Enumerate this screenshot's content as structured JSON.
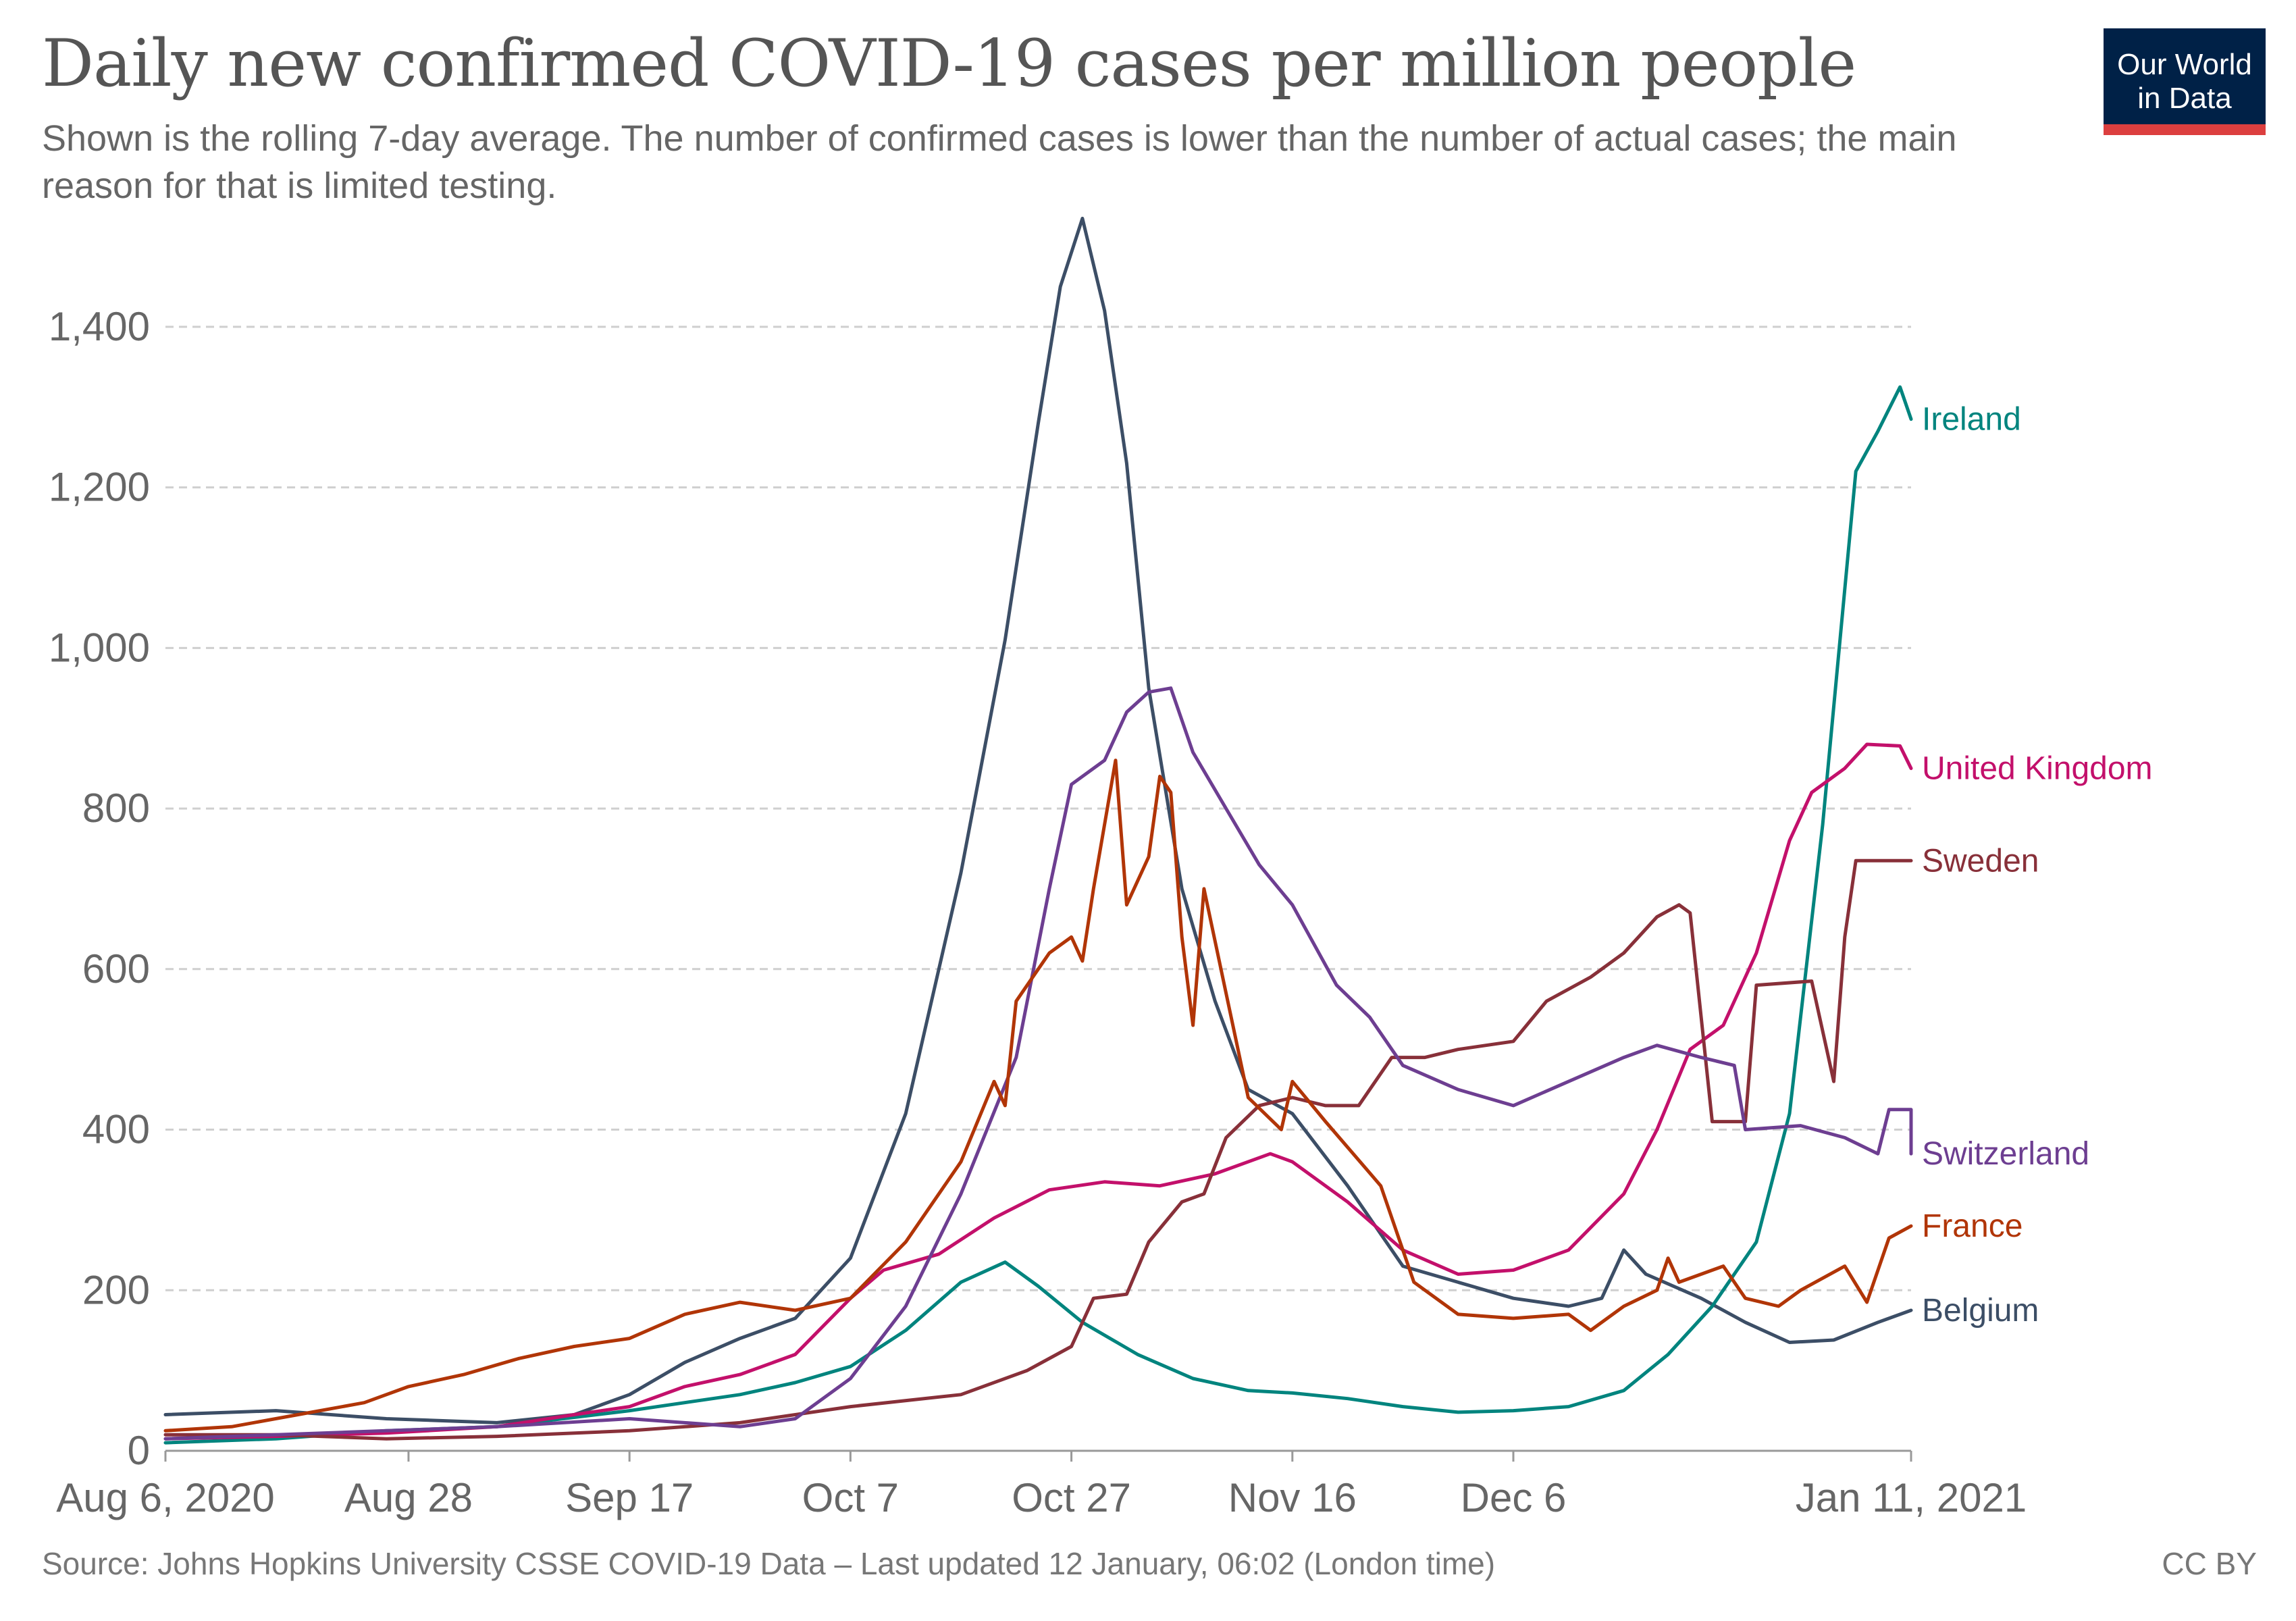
{
  "header": {
    "title": "Daily new confirmed COVID-19 cases per million people",
    "subtitle": "Shown is the rolling 7-day average. The number of confirmed cases is lower than the number of actual cases; the main reason for that is limited testing."
  },
  "logo": {
    "line1": "Our World",
    "line2": "in Data",
    "bg_color": "#002147",
    "bar_color": "#dc3f3f"
  },
  "footer": {
    "source": "Source: Johns Hopkins University CSSE COVID-19 Data – Last updated 12 January, 06:02 (London time)",
    "license": "CC BY"
  },
  "chart_data": {
    "type": "line",
    "title": "Daily new confirmed COVID-19 cases per million people",
    "xlabel": "",
    "ylabel": "",
    "x_range": [
      "2020-08-06",
      "2021-01-11"
    ],
    "ylim": [
      0,
      1500
    ],
    "y_ticks": [
      0,
      200,
      400,
      600,
      800,
      1000,
      1200,
      1400
    ],
    "y_tick_labels": [
      "0",
      "200",
      "400",
      "600",
      "800",
      "1,000",
      "1,200",
      "1,400"
    ],
    "x_ticks": [
      "2020-08-06",
      "2020-08-28",
      "2020-09-17",
      "2020-10-07",
      "2020-10-27",
      "2020-11-16",
      "2020-12-06",
      "2021-01-11"
    ],
    "x_tick_labels": [
      "Aug 6, 2020",
      "Aug 28",
      "Sep 17",
      "Oct 7",
      "Oct 27",
      "Nov 16",
      "Dec 6",
      "Jan 11, 2021"
    ],
    "grid": "horizontal dashed",
    "legend": "inline labels at line ends (right)",
    "series": [
      {
        "name": "Belgium",
        "color": "#3c4e66",
        "points": [
          [
            "2020-08-06",
            45
          ],
          [
            "2020-08-16",
            50
          ],
          [
            "2020-08-26",
            40
          ],
          [
            "2020-09-05",
            35
          ],
          [
            "2020-09-12",
            45
          ],
          [
            "2020-09-17",
            70
          ],
          [
            "2020-09-22",
            110
          ],
          [
            "2020-09-27",
            140
          ],
          [
            "2020-10-02",
            165
          ],
          [
            "2020-10-07",
            240
          ],
          [
            "2020-10-12",
            420
          ],
          [
            "2020-10-17",
            720
          ],
          [
            "2020-10-21",
            1010
          ],
          [
            "2020-10-24",
            1280
          ],
          [
            "2020-10-26",
            1450
          ],
          [
            "2020-10-28",
            1535
          ],
          [
            "2020-10-30",
            1420
          ],
          [
            "2020-11-01",
            1230
          ],
          [
            "2020-11-03",
            950
          ],
          [
            "2020-11-06",
            700
          ],
          [
            "2020-11-09",
            560
          ],
          [
            "2020-11-12",
            450
          ],
          [
            "2020-11-16",
            420
          ],
          [
            "2020-11-21",
            330
          ],
          [
            "2020-11-26",
            230
          ],
          [
            "2020-12-01",
            210
          ],
          [
            "2020-12-06",
            190
          ],
          [
            "2020-12-11",
            180
          ],
          [
            "2020-12-14",
            190
          ],
          [
            "2020-12-16",
            250
          ],
          [
            "2020-12-18",
            220
          ],
          [
            "2020-12-23",
            190
          ],
          [
            "2020-12-27",
            160
          ],
          [
            "2020-12-31",
            135
          ],
          [
            "2021-01-04",
            138
          ],
          [
            "2021-01-08",
            160
          ],
          [
            "2021-01-11",
            175
          ]
        ]
      },
      {
        "name": "Ireland",
        "color": "#00847e",
        "points": [
          [
            "2020-08-06",
            10
          ],
          [
            "2020-08-16",
            15
          ],
          [
            "2020-08-26",
            25
          ],
          [
            "2020-09-05",
            30
          ],
          [
            "2020-09-17",
            50
          ],
          [
            "2020-09-27",
            70
          ],
          [
            "2020-10-02",
            85
          ],
          [
            "2020-10-07",
            105
          ],
          [
            "2020-10-12",
            150
          ],
          [
            "2020-10-17",
            210
          ],
          [
            "2020-10-21",
            235
          ],
          [
            "2020-10-24",
            205
          ],
          [
            "2020-10-28",
            160
          ],
          [
            "2020-11-02",
            120
          ],
          [
            "2020-11-07",
            90
          ],
          [
            "2020-11-12",
            75
          ],
          [
            "2020-11-16",
            72
          ],
          [
            "2020-11-21",
            65
          ],
          [
            "2020-11-26",
            55
          ],
          [
            "2020-12-01",
            48
          ],
          [
            "2020-12-06",
            50
          ],
          [
            "2020-12-11",
            55
          ],
          [
            "2020-12-16",
            75
          ],
          [
            "2020-12-20",
            120
          ],
          [
            "2020-12-24",
            180
          ],
          [
            "2020-12-28",
            260
          ],
          [
            "2020-12-31",
            420
          ],
          [
            "2021-01-03",
            780
          ],
          [
            "2021-01-06",
            1220
          ],
          [
            "2021-01-08",
            1270
          ],
          [
            "2021-01-10",
            1325
          ],
          [
            "2021-01-11",
            1285
          ]
        ]
      },
      {
        "name": "United Kingdom",
        "color": "#c3106b",
        "points": [
          [
            "2020-08-06",
            15
          ],
          [
            "2020-08-16",
            18
          ],
          [
            "2020-08-26",
            22
          ],
          [
            "2020-09-05",
            30
          ],
          [
            "2020-09-12",
            45
          ],
          [
            "2020-09-17",
            55
          ],
          [
            "2020-09-22",
            80
          ],
          [
            "2020-09-27",
            95
          ],
          [
            "2020-10-02",
            120
          ],
          [
            "2020-10-07",
            190
          ],
          [
            "2020-10-10",
            225
          ],
          [
            "2020-10-15",
            245
          ],
          [
            "2020-10-20",
            290
          ],
          [
            "2020-10-25",
            325
          ],
          [
            "2020-10-30",
            335
          ],
          [
            "2020-11-04",
            330
          ],
          [
            "2020-11-09",
            345
          ],
          [
            "2020-11-14",
            370
          ],
          [
            "2020-11-16",
            360
          ],
          [
            "2020-11-21",
            310
          ],
          [
            "2020-11-26",
            250
          ],
          [
            "2020-12-01",
            220
          ],
          [
            "2020-12-06",
            225
          ],
          [
            "2020-12-11",
            250
          ],
          [
            "2020-12-16",
            320
          ],
          [
            "2020-12-19",
            400
          ],
          [
            "2020-12-22",
            500
          ],
          [
            "2020-12-25",
            530
          ],
          [
            "2020-12-28",
            620
          ],
          [
            "2020-12-31",
            760
          ],
          [
            "2021-01-02",
            820
          ],
          [
            "2021-01-05",
            850
          ],
          [
            "2021-01-07",
            880
          ],
          [
            "2021-01-10",
            878
          ],
          [
            "2021-01-11",
            850
          ]
        ]
      },
      {
        "name": "Sweden",
        "color": "#883039",
        "points": [
          [
            "2020-08-06",
            20
          ],
          [
            "2020-08-16",
            20
          ],
          [
            "2020-08-26",
            15
          ],
          [
            "2020-09-05",
            18
          ],
          [
            "2020-09-17",
            25
          ],
          [
            "2020-09-27",
            35
          ],
          [
            "2020-10-07",
            55
          ],
          [
            "2020-10-17",
            70
          ],
          [
            "2020-10-23",
            100
          ],
          [
            "2020-10-27",
            130
          ],
          [
            "2020-10-29",
            190
          ],
          [
            "2020-11-01",
            195
          ],
          [
            "2020-11-03",
            260
          ],
          [
            "2020-11-06",
            310
          ],
          [
            "2020-11-08",
            320
          ],
          [
            "2020-11-10",
            390
          ],
          [
            "2020-11-13",
            430
          ],
          [
            "2020-11-16",
            440
          ],
          [
            "2020-11-19",
            430
          ],
          [
            "2020-11-22",
            430
          ],
          [
            "2020-11-25",
            490
          ],
          [
            "2020-11-28",
            490
          ],
          [
            "2020-12-01",
            500
          ],
          [
            "2020-12-06",
            510
          ],
          [
            "2020-12-09",
            560
          ],
          [
            "2020-12-13",
            590
          ],
          [
            "2020-12-16",
            620
          ],
          [
            "2020-12-19",
            665
          ],
          [
            "2020-12-21",
            680
          ],
          [
            "2020-12-22",
            670
          ],
          [
            "2020-12-24",
            410
          ],
          [
            "2020-12-27",
            410
          ],
          [
            "2020-12-28",
            580
          ],
          [
            "2021-01-02",
            585
          ],
          [
            "2021-01-04",
            460
          ],
          [
            "2021-01-05",
            640
          ],
          [
            "2021-01-06",
            735
          ],
          [
            "2021-01-11",
            735
          ]
        ]
      },
      {
        "name": "Switzerland",
        "color": "#6d3e91",
        "points": [
          [
            "2020-08-06",
            15
          ],
          [
            "2020-08-16",
            20
          ],
          [
            "2020-08-26",
            25
          ],
          [
            "2020-09-05",
            30
          ],
          [
            "2020-09-17",
            40
          ],
          [
            "2020-09-27",
            30
          ],
          [
            "2020-10-02",
            40
          ],
          [
            "2020-10-07",
            90
          ],
          [
            "2020-10-12",
            180
          ],
          [
            "2020-10-17",
            320
          ],
          [
            "2020-10-22",
            490
          ],
          [
            "2020-10-25",
            700
          ],
          [
            "2020-10-27",
            830
          ],
          [
            "2020-10-30",
            860
          ],
          [
            "2020-11-01",
            920
          ],
          [
            "2020-11-03",
            945
          ],
          [
            "2020-11-05",
            950
          ],
          [
            "2020-11-07",
            870
          ],
          [
            "2020-11-10",
            800
          ],
          [
            "2020-11-13",
            730
          ],
          [
            "2020-11-16",
            680
          ],
          [
            "2020-11-20",
            580
          ],
          [
            "2020-11-23",
            540
          ],
          [
            "2020-11-26",
            480
          ],
          [
            "2020-12-01",
            450
          ],
          [
            "2020-12-06",
            430
          ],
          [
            "2020-12-11",
            460
          ],
          [
            "2020-12-16",
            490
          ],
          [
            "2020-12-19",
            505
          ],
          [
            "2020-12-23",
            490
          ],
          [
            "2020-12-26",
            480
          ],
          [
            "2020-12-27",
            400
          ],
          [
            "2021-01-01",
            405
          ],
          [
            "2021-01-05",
            390
          ],
          [
            "2021-01-08",
            370
          ],
          [
            "2021-01-09",
            425
          ],
          [
            "2021-01-11",
            425
          ],
          [
            "2021-01-11",
            370
          ]
        ]
      },
      {
        "name": "France",
        "color": "#b13507",
        "points": [
          [
            "2020-08-06",
            25
          ],
          [
            "2020-08-12",
            30
          ],
          [
            "2020-08-18",
            45
          ],
          [
            "2020-08-24",
            60
          ],
          [
            "2020-08-28",
            80
          ],
          [
            "2020-09-02",
            95
          ],
          [
            "2020-09-07",
            115
          ],
          [
            "2020-09-12",
            130
          ],
          [
            "2020-09-17",
            140
          ],
          [
            "2020-09-22",
            170
          ],
          [
            "2020-09-27",
            185
          ],
          [
            "2020-10-02",
            175
          ],
          [
            "2020-10-07",
            190
          ],
          [
            "2020-10-12",
            260
          ],
          [
            "2020-10-17",
            360
          ],
          [
            "2020-10-20",
            460
          ],
          [
            "2020-10-21",
            430
          ],
          [
            "2020-10-22",
            560
          ],
          [
            "2020-10-25",
            620
          ],
          [
            "2020-10-27",
            640
          ],
          [
            "2020-10-28",
            610
          ],
          [
            "2020-10-29",
            700
          ],
          [
            "2020-10-31",
            860
          ],
          [
            "2020-11-01",
            680
          ],
          [
            "2020-11-03",
            740
          ],
          [
            "2020-11-04",
            840
          ],
          [
            "2020-11-05",
            820
          ],
          [
            "2020-11-06",
            640
          ],
          [
            "2020-11-07",
            530
          ],
          [
            "2020-11-08",
            700
          ],
          [
            "2020-11-10",
            570
          ],
          [
            "2020-11-12",
            440
          ],
          [
            "2020-11-15",
            400
          ],
          [
            "2020-11-16",
            460
          ],
          [
            "2020-11-19",
            410
          ],
          [
            "2020-11-24",
            330
          ],
          [
            "2020-11-27",
            210
          ],
          [
            "2020-12-01",
            170
          ],
          [
            "2020-12-06",
            165
          ],
          [
            "2020-12-11",
            170
          ],
          [
            "2020-12-13",
            150
          ],
          [
            "2020-12-16",
            180
          ],
          [
            "2020-12-19",
            200
          ],
          [
            "2020-12-20",
            240
          ],
          [
            "2020-12-21",
            210
          ],
          [
            "2020-12-25",
            230
          ],
          [
            "2020-12-27",
            190
          ],
          [
            "2020-12-30",
            180
          ],
          [
            "2021-01-01",
            200
          ],
          [
            "2021-01-05",
            230
          ],
          [
            "2021-01-07",
            185
          ],
          [
            "2021-01-09",
            265
          ],
          [
            "2021-01-11",
            280
          ]
        ]
      }
    ]
  }
}
